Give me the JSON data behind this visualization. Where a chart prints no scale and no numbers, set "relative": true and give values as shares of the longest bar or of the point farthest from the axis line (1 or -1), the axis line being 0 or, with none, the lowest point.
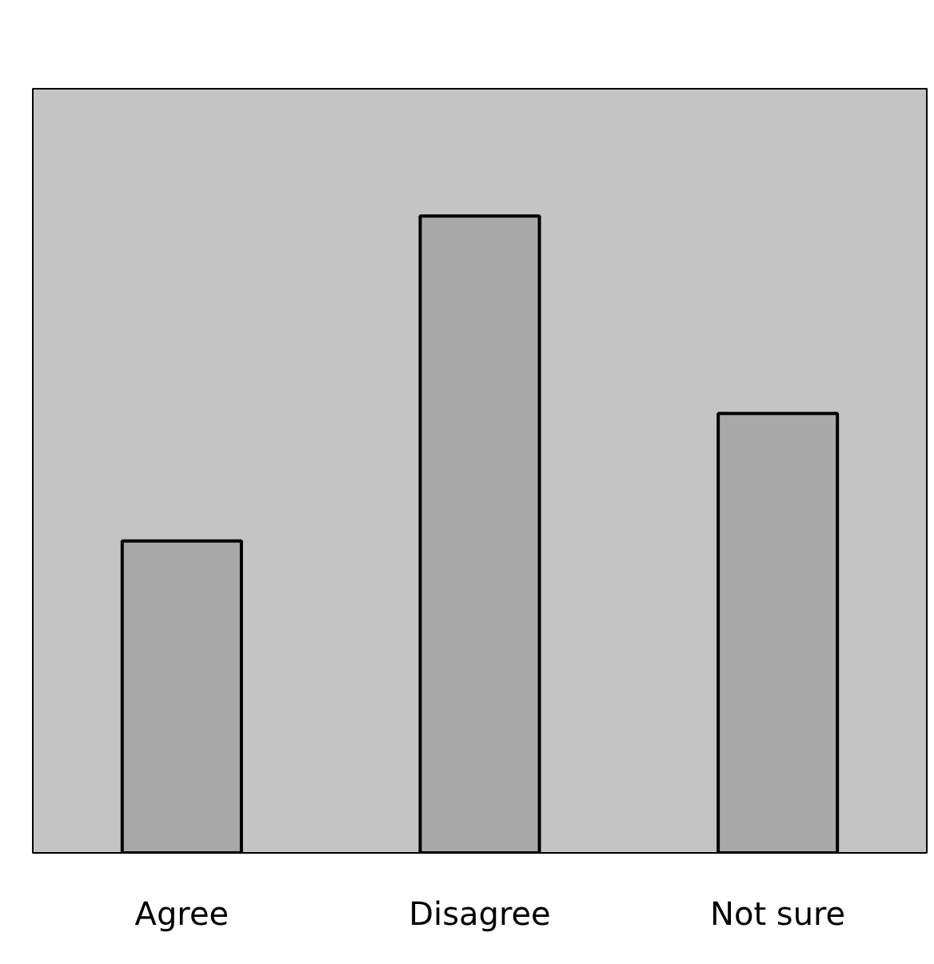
{
  "chart_data": {
    "type": "bar",
    "relative": true,
    "categories": [
      "Agree",
      "Disagree",
      "Not sure"
    ],
    "values": [
      0.49,
      1,
      0.69
    ],
    "color": "#a9a9a9"
  }
}
